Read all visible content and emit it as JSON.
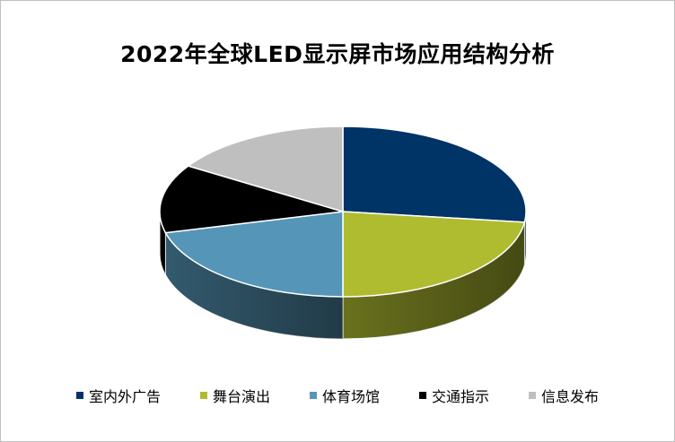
{
  "chart_data": {
    "type": "pie",
    "title": "2022年全球LED显示屏市场应用结构分析",
    "categories": [
      "室内外广告",
      "舞台演出",
      "体育场馆",
      "交通指示",
      "信息发布"
    ],
    "values": [
      27,
      23,
      21,
      13,
      16
    ],
    "colors": [
      "#003366",
      "#b0bc30",
      "#5596b8",
      "#000000",
      "#bfbfbf"
    ],
    "legend_position": "bottom",
    "style": "3d"
  }
}
